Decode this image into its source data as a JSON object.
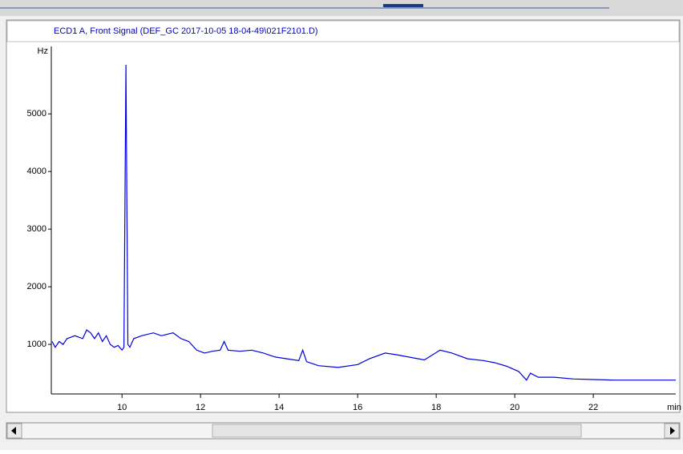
{
  "chart_data": {
    "type": "line",
    "title": "ECD1 A, Front Signal (DEF_GC 2017-10-05 18-04-49\\021F2101.D)",
    "y_unit": "Hz",
    "x_unit": "min",
    "color": "#0000e0",
    "x": [
      8.22,
      8.3,
      8.4,
      8.5,
      8.6,
      8.8,
      9.0,
      9.1,
      9.2,
      9.3,
      9.4,
      9.5,
      9.6,
      9.7,
      9.8,
      9.9,
      10.0,
      10.05,
      10.1,
      10.15,
      10.2,
      10.3,
      10.5,
      10.8,
      11.0,
      11.3,
      11.5,
      11.7,
      11.9,
      12.1,
      12.3,
      12.5,
      12.6,
      12.7,
      13.0,
      13.3,
      13.6,
      13.9,
      14.2,
      14.5,
      14.6,
      14.7,
      15.0,
      15.5,
      16.0,
      16.3,
      16.7,
      17.0,
      17.3,
      17.7,
      18.1,
      18.4,
      18.8,
      19.2,
      19.5,
      19.8,
      20.1,
      20.3,
      20.4,
      20.6,
      21.0,
      21.5,
      22.0,
      22.5,
      24.1
    ],
    "values": [
      1050,
      950,
      1050,
      1000,
      1100,
      1150,
      1100,
      1250,
      1200,
      1100,
      1200,
      1050,
      1150,
      1000,
      950,
      980,
      900,
      950,
      5850,
      1000,
      950,
      1100,
      1150,
      1200,
      1150,
      1200,
      1100,
      1050,
      900,
      850,
      880,
      900,
      1050,
      900,
      880,
      900,
      850,
      780,
      750,
      720,
      900,
      700,
      630,
      600,
      650,
      750,
      850,
      820,
      780,
      730,
      900,
      850,
      750,
      720,
      680,
      620,
      530,
      380,
      500,
      430,
      430,
      400,
      390,
      380,
      380
    ],
    "xlim": [
      8.2,
      24.1
    ],
    "ylim": [
      140,
      6170
    ],
    "xticks": [
      10,
      12,
      14,
      16,
      18,
      20,
      22
    ],
    "yticks": [
      1000,
      2000,
      3000,
      4000,
      5000
    ]
  }
}
